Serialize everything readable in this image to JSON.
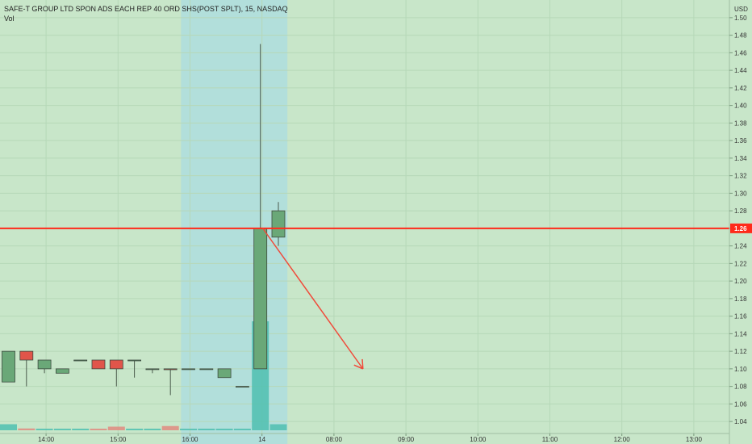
{
  "header": {
    "symbol_line": "SAFE-T GROUP LTD SPON ADS EACH REP 40 ORD SHS(POST SPLT), 15, NASDAQ",
    "indicator": "Vol"
  },
  "colors": {
    "background": "#c8e6c9",
    "session_band": "#b2dfdb",
    "up": "#6aa878",
    "down": "#e0554a",
    "vol_up": "#4fc0b0",
    "vol_down": "#e08a80",
    "hline": "#ff2a1a",
    "arrow": "#f04a3a"
  },
  "chart_data": {
    "type": "candlestick",
    "currency_label": "USD",
    "y_ticks": [
      "1.04",
      "1.06",
      "1.08",
      "1.10",
      "1.12",
      "1.14",
      "1.16",
      "1.18",
      "1.20",
      "1.22",
      "1.24",
      "1.26",
      "1.28",
      "1.30",
      "1.32",
      "1.34",
      "1.36",
      "1.38",
      "1.40",
      "1.42",
      "1.44",
      "1.46",
      "1.48",
      "1.50"
    ],
    "ylim": [
      1.03,
      1.51
    ],
    "x_ticks": [
      {
        "label": "14:00",
        "slot": 2
      },
      {
        "label": "15:00",
        "slot": 6
      },
      {
        "label": "16:00",
        "slot": 10
      },
      {
        "label": "14",
        "slot": 14
      },
      {
        "label": "08:00",
        "slot": 18
      },
      {
        "label": "09:00",
        "slot": 22
      },
      {
        "label": "10:00",
        "slot": 26
      },
      {
        "label": "11:00",
        "slot": 30
      },
      {
        "label": "12:00",
        "slot": 34
      },
      {
        "label": "13:00",
        "slot": 38
      }
    ],
    "candles": [
      {
        "slot": 0,
        "o": 1.085,
        "h": 1.12,
        "l": 1.085,
        "c": 1.12,
        "vol": 1.0
      },
      {
        "slot": 1,
        "o": 1.12,
        "h": 1.12,
        "l": 1.08,
        "c": 1.11,
        "vol": 0.3
      },
      {
        "slot": 2,
        "o": 1.1,
        "h": 1.11,
        "l": 1.095,
        "c": 1.11,
        "vol": 0.2
      },
      {
        "slot": 3,
        "o": 1.095,
        "h": 1.1,
        "l": 1.095,
        "c": 1.1,
        "vol": 0.2
      },
      {
        "slot": 4,
        "o": 1.11,
        "h": 1.11,
        "l": 1.11,
        "c": 1.11,
        "vol": 0.1
      },
      {
        "slot": 5,
        "o": 1.11,
        "h": 1.11,
        "l": 1.1,
        "c": 1.1,
        "vol": 0.1
      },
      {
        "slot": 6,
        "o": 1.11,
        "h": 1.11,
        "l": 1.08,
        "c": 1.1,
        "vol": 0.6
      },
      {
        "slot": 7,
        "o": 1.11,
        "h": 1.11,
        "l": 1.09,
        "c": 1.11,
        "vol": 0.2
      },
      {
        "slot": 8,
        "o": 1.1,
        "h": 1.1,
        "l": 1.095,
        "c": 1.1,
        "vol": 0.1
      },
      {
        "slot": 9,
        "o": 1.1,
        "h": 1.1,
        "l": 1.07,
        "c": 1.099,
        "vol": 0.7
      },
      {
        "slot": 10,
        "o": 1.1,
        "h": 1.1,
        "l": 1.1,
        "c": 1.1,
        "vol": 0.1
      },
      {
        "slot": 11,
        "o": 1.1,
        "h": 1.1,
        "l": 1.1,
        "c": 1.1,
        "vol": 0.1
      },
      {
        "slot": 12,
        "o": 1.09,
        "h": 1.1,
        "l": 1.09,
        "c": 1.1,
        "vol": 0.1
      },
      {
        "slot": 13,
        "o": 1.08,
        "h": 1.08,
        "l": 1.08,
        "c": 1.08,
        "vol": 0.1
      },
      {
        "slot": 14,
        "o": 1.1,
        "h": 1.47,
        "l": 1.1,
        "c": 1.26,
        "vol": 18.0
      },
      {
        "slot": 15,
        "o": 1.25,
        "h": 1.29,
        "l": 1.24,
        "c": 1.28,
        "vol": 1.0
      }
    ],
    "volume_max": 18.0,
    "session_band_slots": [
      10,
      15
    ],
    "last_price": "1.26",
    "horizontal_line": 1.26,
    "arrow": {
      "from": {
        "slot": 14,
        "price": 1.26
      },
      "to": {
        "slot": 19.7,
        "price": 1.1
      }
    },
    "grid": true
  }
}
